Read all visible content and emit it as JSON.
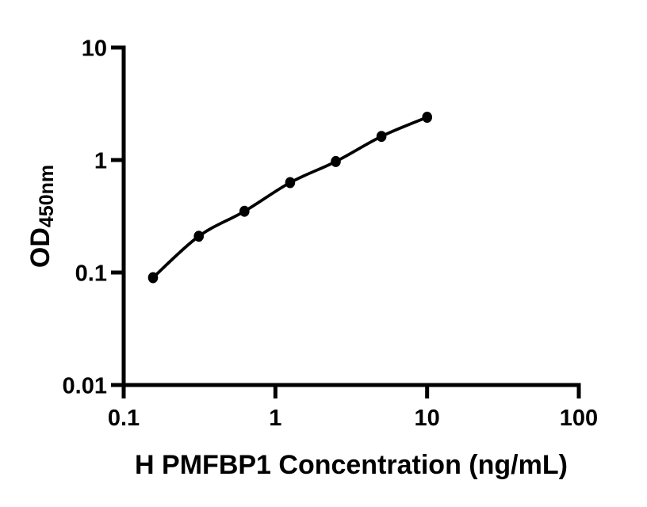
{
  "page": {
    "background_color": "#ffffff"
  },
  "chart_data": {
    "type": "scatter",
    "subtype": "elisa-standard-curve",
    "title": "",
    "xlabel": "H PMFBP1 Concentration (ng/mL)",
    "ylabel_main": "OD",
    "ylabel_sub": "450nm",
    "x_scale": "log10",
    "y_scale": "log10",
    "xlim": [
      0.1,
      100
    ],
    "ylim": [
      0.01,
      10
    ],
    "x_tick_labels": [
      "0.1",
      "1",
      "10",
      "100"
    ],
    "y_tick_labels": [
      "0.01",
      "0.1",
      "1",
      "10"
    ],
    "grid": false,
    "legend": false,
    "axis_color": "#000000",
    "series": [
      {
        "marker": "filled-circle",
        "color": "#000000",
        "line_style": "smooth-solid",
        "x": [
          0.156,
          0.3125,
          0.625,
          1.25,
          2.5,
          5,
          10
        ],
        "y": [
          0.09,
          0.21,
          0.35,
          0.63,
          0.97,
          1.62,
          2.4
        ]
      }
    ]
  }
}
